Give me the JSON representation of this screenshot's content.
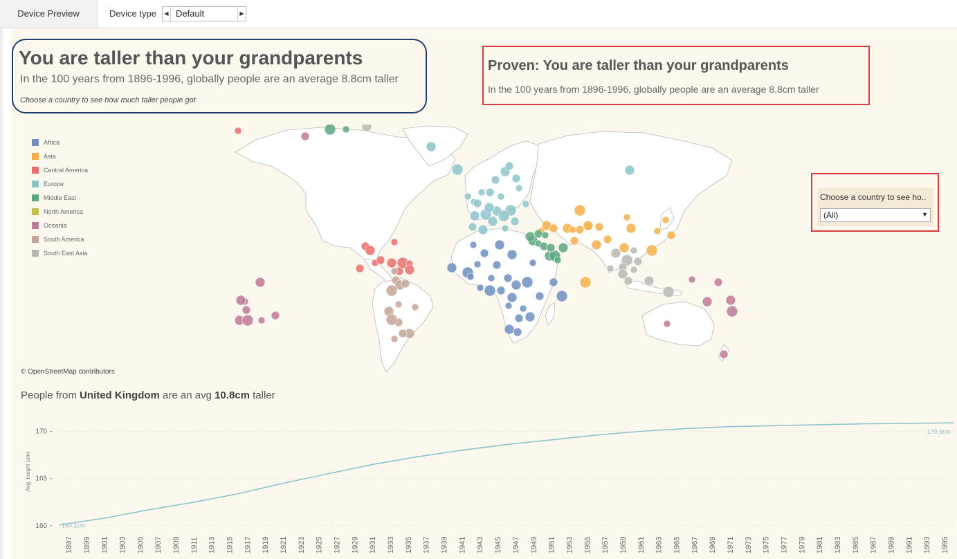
{
  "toolbar": {
    "tab_label": "Device Preview",
    "device_type_label": "Device type",
    "device_type_value": "Default"
  },
  "header": {
    "title": "You are taller than your grandparents",
    "subtitle": "In the 100 years from 1896-1996, globally people are an average 8.8cm taller",
    "hint": "Choose a country to see how much taller people got"
  },
  "proven": {
    "title": "Proven: You are taller than your grandparents",
    "subtitle": "In the 100 years from 1896-1996, globally people are an average 8.8cm taller"
  },
  "legend": [
    {
      "label": "Africa",
      "color": "#6e8fbf"
    },
    {
      "label": "Asia",
      "color": "#f5b04a"
    },
    {
      "label": "Central America",
      "color": "#ea6e6c"
    },
    {
      "label": "Europe",
      "color": "#8cc4cb"
    },
    {
      "label": "Middle East",
      "color": "#5ca781"
    },
    {
      "label": "North America",
      "color": "#c8bd4a"
    },
    {
      "label": "Oceania",
      "color": "#be7a98"
    },
    {
      "label": "South America",
      "color": "#c4a696"
    },
    {
      "label": "South East Asia",
      "color": "#b8b8b3"
    }
  ],
  "map": {
    "attribution": "© OpenStreetMap contributors"
  },
  "filter": {
    "label": "Choose a country to see ho..",
    "value": "(All)"
  },
  "summary": {
    "prefix": "People from ",
    "country": "United Kingdom",
    "middle": " are an avg ",
    "amount": "10.8cm",
    "suffix": " taller"
  },
  "chart_data": {
    "type": "line",
    "title": "",
    "xlabel": "",
    "ylabel": "Avg. height (cm)",
    "ylim": [
      160,
      171.5
    ],
    "y_ticks": [
      160,
      165,
      170
    ],
    "x_tick_labels": [
      "1897",
      "1899",
      "1901",
      "1903",
      "1905",
      "1907",
      "1909",
      "1911",
      "1913",
      "1915",
      "1917",
      "1919",
      "1921",
      "1923",
      "1925",
      "1927",
      "1929",
      "1931",
      "1933",
      "1935",
      "1937",
      "1939",
      "1941",
      "1943",
      "1945",
      "1947",
      "1949",
      "1951",
      "1953",
      "1955",
      "1957",
      "1959",
      "1961",
      "1963",
      "1965",
      "1967",
      "1969",
      "1971",
      "1973",
      "1975",
      "1977",
      "1979",
      "1981",
      "1983",
      "1985",
      "1987",
      "1989",
      "1991",
      "1993",
      "1995"
    ],
    "series": [
      {
        "color": "#8cc4cb",
        "x": [
          1896,
          1901,
          1906,
          1911,
          1916,
          1921,
          1926,
          1931,
          1936,
          1941,
          1946,
          1951,
          1956,
          1961,
          1966,
          1971,
          1976,
          1981,
          1986,
          1991,
          1996
        ],
        "y": [
          160.1,
          160.8,
          161.7,
          162.5,
          163.4,
          164.5,
          165.5,
          166.5,
          167.3,
          168.0,
          168.6,
          169.1,
          169.6,
          170.0,
          170.3,
          170.5,
          170.6,
          170.7,
          170.8,
          170.85,
          170.9
        ]
      }
    ],
    "annotations": [
      {
        "text": "160.1cm",
        "x": 1896,
        "y": 160.1
      },
      {
        "text": "170.9cm",
        "x": 1996,
        "y": 170.9
      }
    ]
  }
}
